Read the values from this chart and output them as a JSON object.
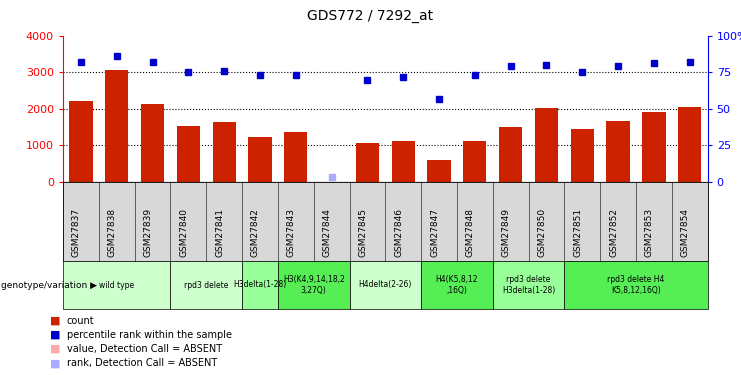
{
  "title": "GDS772 / 7292_at",
  "samples": [
    "GSM27837",
    "GSM27838",
    "GSM27839",
    "GSM27840",
    "GSM27841",
    "GSM27842",
    "GSM27843",
    "GSM27844",
    "GSM27845",
    "GSM27846",
    "GSM27847",
    "GSM27848",
    "GSM27849",
    "GSM27850",
    "GSM27851",
    "GSM27852",
    "GSM27853",
    "GSM27854"
  ],
  "counts": [
    2200,
    3050,
    2130,
    1540,
    1650,
    1230,
    1360,
    0,
    1060,
    1130,
    600,
    1120,
    1510,
    2010,
    1440,
    1670,
    1900,
    2060
  ],
  "ranks": [
    82,
    86,
    82,
    75,
    76,
    73,
    73,
    3,
    70,
    72,
    57,
    73,
    79,
    80,
    75,
    79,
    81,
    82
  ],
  "absent": [
    false,
    false,
    false,
    false,
    false,
    false,
    false,
    true,
    false,
    false,
    false,
    false,
    false,
    false,
    false,
    false,
    false,
    false
  ],
  "ylim_left": [
    0,
    4000
  ],
  "ylim_right": [
    0,
    100
  ],
  "yticks_left": [
    0,
    1000,
    2000,
    3000,
    4000
  ],
  "yticks_right": [
    0,
    25,
    50,
    75,
    100
  ],
  "bar_color": "#cc2200",
  "dot_color": "#0000cc",
  "absent_bar_color": "#ffaaaa",
  "absent_dot_color": "#aaaaff",
  "genotype_groups": [
    {
      "label": "wild type",
      "start": 0,
      "end": 3,
      "color": "#ccffcc"
    },
    {
      "label": "rpd3 delete",
      "start": 3,
      "end": 5,
      "color": "#ccffcc"
    },
    {
      "label": "H3delta(1-28)",
      "start": 5,
      "end": 6,
      "color": "#99ff99"
    },
    {
      "label": "H3(K4,9,14,18,2\n3,27Q)",
      "start": 6,
      "end": 8,
      "color": "#55ee55"
    },
    {
      "label": "H4delta(2-26)",
      "start": 8,
      "end": 10,
      "color": "#ccffcc"
    },
    {
      "label": "H4(K5,8,12\n,16Q)",
      "start": 10,
      "end": 12,
      "color": "#55ee55"
    },
    {
      "label": "rpd3 delete\nH3delta(1-28)",
      "start": 12,
      "end": 14,
      "color": "#99ff99"
    },
    {
      "label": "rpd3 delete H4\nK5,8,12,16Q)",
      "start": 14,
      "end": 18,
      "color": "#55ee55"
    }
  ],
  "legend_items": [
    {
      "label": "count",
      "color": "#cc2200"
    },
    {
      "label": "percentile rank within the sample",
      "color": "#0000cc"
    },
    {
      "label": "value, Detection Call = ABSENT",
      "color": "#ffaaaa"
    },
    {
      "label": "rank, Detection Call = ABSENT",
      "color": "#aaaaff"
    }
  ]
}
